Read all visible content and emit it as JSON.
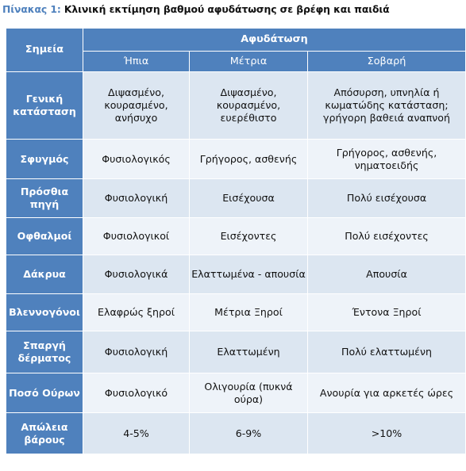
{
  "caption": {
    "label": "Πίνακας 1:",
    "title": "Κλινική εκτίμηση βαθμού αφυδάτωσης σε βρέφη και παιδιά"
  },
  "table": {
    "corner_header": "Σημεία",
    "group_header": "Αφυδάτωση",
    "columns": [
      "Ήπια",
      "Μέτρια",
      "Σοβαρή"
    ],
    "rows": [
      {
        "sign": "Γενική κατάσταση",
        "values": [
          "Διψασμένο, κουρασμένο, ανήσυχο",
          "Διψασμένο, κουρασμένο, ευερέθιστο",
          "Απόσυρση, υπνηλία ή κωματώδης κατάσταση; γρήγορη βαθειά αναπνοή"
        ]
      },
      {
        "sign": "Σφυγμός",
        "values": [
          "Φυσιολογικός",
          "Γρήγορος, ασθενής",
          "Γρήγορος, ασθενής, νηματοειδής"
        ]
      },
      {
        "sign": "Πρόσθια πηγή",
        "values": [
          "Φυσιολογική",
          "Εισέχουσα",
          "Πολύ εισέχουσα"
        ]
      },
      {
        "sign": "Οφθαλμοί",
        "values": [
          "Φυσιολογικοί",
          "Εισέχοντες",
          "Πολύ εισέχοντες"
        ]
      },
      {
        "sign": "Δάκρυα",
        "values": [
          "Φυσιολογικά",
          "Ελαττωμένα - απουσία",
          "Απουσία"
        ]
      },
      {
        "sign": "Βλεννογόνοι",
        "values": [
          "Ελαφρώς ξηροί",
          "Μέτρια Ξηροί",
          "Έντονα Ξηροί"
        ]
      },
      {
        "sign": "Σπαργή δέρματος",
        "values": [
          "Φυσιολογική",
          "Ελαττωμένη",
          "Πολύ ελαττωμένη"
        ]
      },
      {
        "sign": "Ποσό Ούρων",
        "values": [
          "Φυσιολογικό",
          "Ολιγουρία (πυκνά ούρα)",
          "Ανουρία για αρκετές ώρες"
        ]
      },
      {
        "sign": "Απώλεια βάρους",
        "values": [
          "4-5%",
          "6-9%",
          ">10%"
        ]
      }
    ]
  },
  "colors": {
    "header_blue": "#4f81bd",
    "row_light": "#dce6f1",
    "row_lighter": "#eef3f9"
  }
}
